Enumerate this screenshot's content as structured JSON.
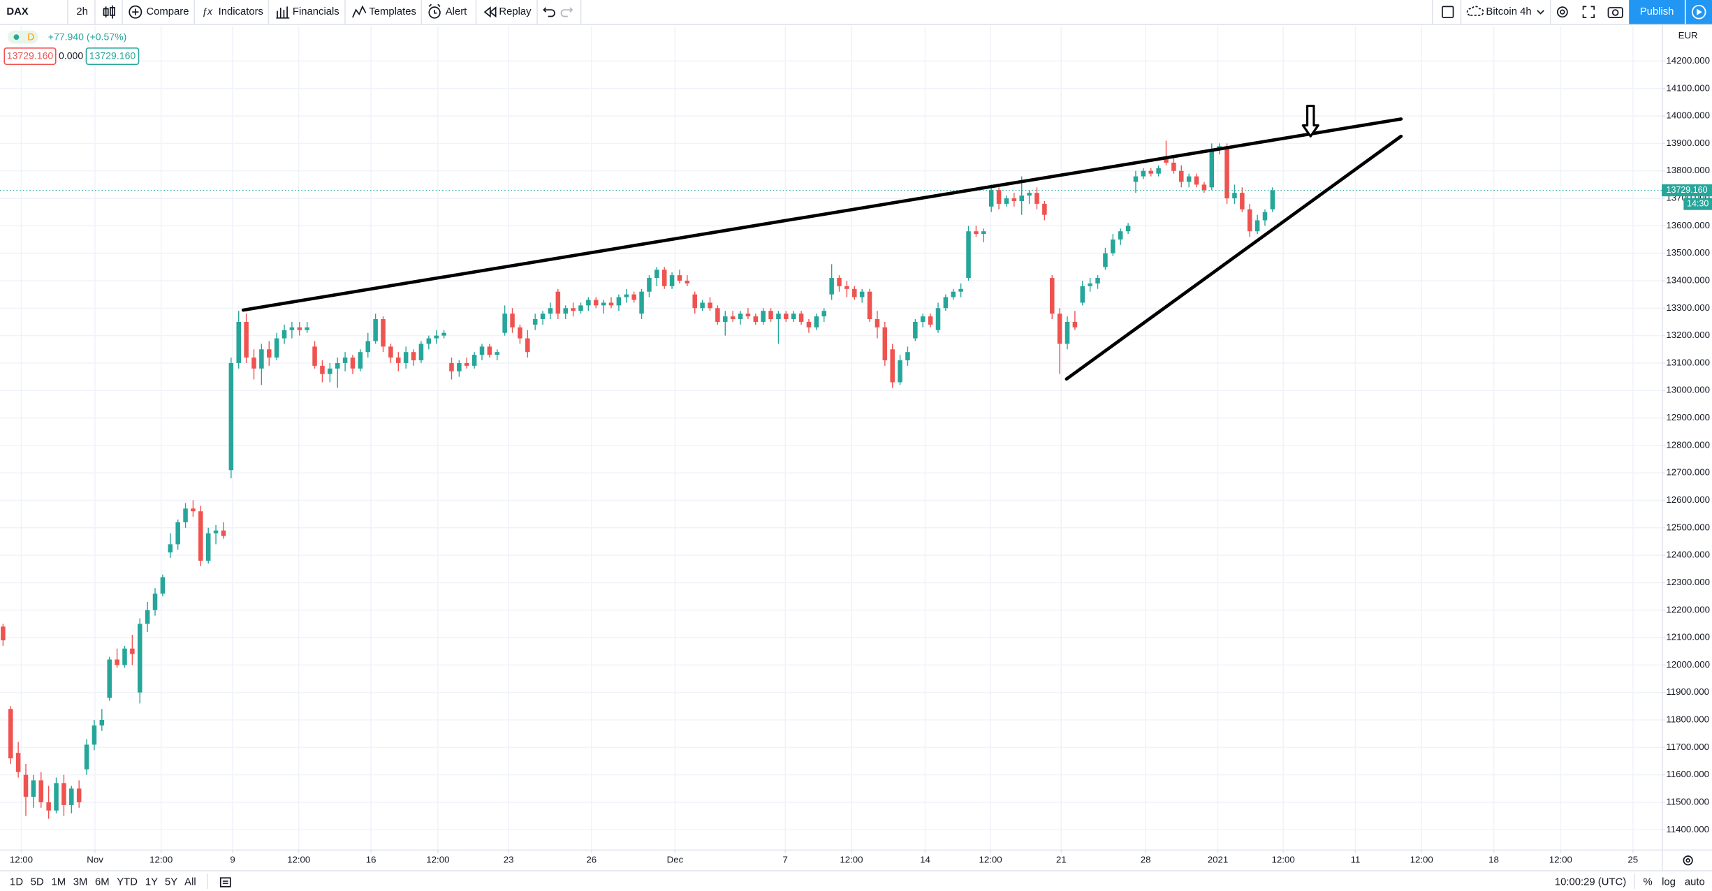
{
  "header": {
    "symbol": "DAX",
    "interval": "2h",
    "buttons": [
      "Compare",
      "Indicators",
      "Financials",
      "Templates",
      "Alert",
      "Replay"
    ],
    "layout": "Bitcoin 4h",
    "publish": "Publish"
  },
  "chart_data": {
    "type": "candlestick",
    "title": "DAX",
    "legend": {
      "source": "D",
      "change": "+77.940 (+0.57%)",
      "values": [
        "13729.160",
        "0.000",
        "13729.160"
      ]
    },
    "currency": "EUR",
    "up_color": "#26a69a",
    "down_color": "#ef5350",
    "x": [
      0,
      1,
      2,
      3,
      4,
      5,
      6,
      7,
      8,
      9,
      10,
      11,
      12,
      13,
      14,
      15,
      16,
      17,
      18,
      19,
      20,
      21,
      22,
      23,
      24,
      25,
      26,
      27,
      28,
      29,
      30,
      31,
      32,
      33,
      34,
      35,
      36,
      37,
      38,
      39,
      40,
      41,
      42,
      43,
      44,
      45,
      46,
      47,
      48,
      49,
      50,
      51,
      52,
      53,
      54,
      55,
      56,
      57,
      58,
      59,
      60,
      61,
      62,
      63,
      64,
      65,
      66,
      67,
      68,
      69,
      70,
      71,
      72,
      73,
      74,
      75,
      76,
      77,
      78,
      79,
      80,
      81,
      82,
      83,
      84,
      85,
      86,
      87,
      88,
      89,
      90,
      91,
      92,
      93,
      94,
      95,
      96,
      97,
      98,
      99,
      100,
      101,
      102,
      103,
      104,
      105,
      106,
      107,
      108,
      109,
      110,
      111,
      112,
      113,
      114,
      115,
      116,
      117,
      118,
      119,
      120,
      121,
      122,
      123,
      124,
      125,
      126,
      127,
      128,
      129,
      130,
      131,
      132,
      133,
      134,
      135,
      136,
      137,
      138,
      139,
      140,
      141,
      142,
      143,
      144,
      145,
      146,
      147,
      148,
      149,
      150,
      151,
      152,
      153,
      154,
      155,
      156,
      157,
      158,
      159,
      160,
      161,
      162,
      163,
      164,
      165,
      166,
      167
    ],
    "open": [
      12140,
      11840,
      11680,
      11600,
      11520,
      11580,
      11500,
      11470,
      11570,
      11490,
      11550,
      11620,
      11710,
      11780,
      11880,
      12020,
      12000,
      12060,
      11900,
      12150,
      12200,
      12260,
      12410,
      12440,
      12520,
      12570,
      12560,
      12380,
      12480,
      12490,
      12710,
      13100,
      13250,
      13120,
      13080,
      13150,
      13120,
      13190,
      13220,
      13230,
      13220,
      13160,
      13090,
      13060,
      13080,
      13100,
      13120,
      13080,
      13140,
      13180,
      13260,
      13160,
      13120,
      13100,
      13140,
      13110,
      13170,
      13190,
      13200,
      13100,
      13070,
      13100,
      13090,
      13130,
      13160,
      13130,
      13210,
      13280,
      13230,
      13190,
      13240,
      13260,
      13280,
      13360,
      13280,
      13300,
      13290,
      13310,
      13330,
      13310,
      13320,
      13310,
      13340,
      13350,
      13280,
      13360,
      13410,
      13440,
      13380,
      13420,
      13400,
      13350,
      13300,
      13320,
      13300,
      13250,
      13270,
      13260,
      13280,
      13270,
      13250,
      13290,
      13260,
      13280,
      13260,
      13280,
      13250,
      13230,
      13270,
      13350,
      13410,
      13380,
      13370,
      13340,
      13360,
      13260,
      13230,
      13150,
      13030,
      13110,
      13190,
      13250,
      13270,
      13220,
      13300,
      13340,
      13360,
      13410,
      13580,
      13570,
      13670,
      13730,
      13680,
      13700,
      13690,
      13710,
      13720,
      13680,
      13410,
      13280,
      13170,
      13250,
      13320,
      13380,
      13390,
      13450,
      13500,
      13550,
      13580,
      13760,
      13780,
      13800,
      13790,
      13850,
      13830,
      13800,
      13760,
      13780,
      13750,
      13740,
      13880,
      13890,
      13700,
      13720,
      13660,
      13580,
      13620,
      13660
    ],
    "high": [
      12150,
      11850,
      11720,
      11640,
      11600,
      11610,
      11560,
      11590,
      11600,
      11560,
      11580,
      11730,
      11800,
      11840,
      12030,
      12060,
      12070,
      12110,
      12170,
      12230,
      12280,
      12330,
      12480,
      12530,
      12590,
      12600,
      12580,
      12500,
      12510,
      12520,
      13120,
      13290,
      13280,
      13150,
      13170,
      13180,
      13210,
      13240,
      13250,
      13250,
      13250,
      13180,
      13110,
      13100,
      13120,
      13140,
      13130,
      13150,
      13210,
      13280,
      13270,
      13170,
      13140,
      13160,
      13150,
      13180,
      13200,
      13220,
      13220,
      13120,
      13110,
      13120,
      13140,
      13170,
      13170,
      13150,
      13310,
      13300,
      13240,
      13220,
      13280,
      13290,
      13320,
      13370,
      13310,
      13320,
      13320,
      13340,
      13340,
      13330,
      13340,
      13350,
      13370,
      13360,
      13370,
      13420,
      13450,
      13450,
      13430,
      13440,
      13420,
      13360,
      13330,
      13340,
      13310,
      13290,
      13290,
      13290,
      13300,
      13280,
      13300,
      13300,
      13290,
      13290,
      13290,
      13290,
      13260,
      13280,
      13300,
      13460,
      13420,
      13400,
      13380,
      13370,
      13370,
      13290,
      13250,
      13170,
      13130,
      13160,
      13260,
      13280,
      13280,
      13320,
      13350,
      13370,
      13390,
      13600,
      13600,
      13590,
      13750,
      13740,
      13710,
      13720,
      13780,
      13730,
      13740,
      13690,
      13420,
      13300,
      13270,
      13290,
      13400,
      13410,
      13420,
      13520,
      13570,
      13590,
      13610,
      13800,
      13810,
      13810,
      13820,
      13910,
      13850,
      13820,
      13790,
      13790,
      13760,
      13900,
      13900,
      13900,
      13750,
      13740,
      13680,
      13640,
      13660,
      13740
    ],
    "low": [
      12070,
      11640,
      11590,
      11450,
      11480,
      11480,
      11440,
      11460,
      11450,
      11460,
      11480,
      11600,
      11690,
      11760,
      11870,
      11990,
      11990,
      12000,
      11860,
      12120,
      12180,
      12250,
      12390,
      12420,
      12500,
      12540,
      12360,
      12370,
      12440,
      12460,
      12680,
      13080,
      13100,
      13040,
      13020,
      13090,
      13110,
      13170,
      13190,
      13200,
      13210,
      13080,
      13030,
      13030,
      13010,
      13070,
      13060,
      13070,
      13120,
      13170,
      13140,
      13100,
      13070,
      13080,
      13090,
      13100,
      13150,
      13170,
      13190,
      13040,
      13050,
      13080,
      13080,
      13110,
      13120,
      13110,
      13200,
      13210,
      13170,
      13120,
      13220,
      13240,
      13260,
      13260,
      13260,
      13270,
      13280,
      13290,
      13300,
      13280,
      13300,
      13290,
      13320,
      13320,
      13260,
      13340,
      13380,
      13370,
      13370,
      13390,
      13380,
      13280,
      13290,
      13290,
      13240,
      13200,
      13250,
      13240,
      13260,
      13240,
      13240,
      13250,
      13170,
      13250,
      13250,
      13240,
      13210,
      13220,
      13250,
      13330,
      13360,
      13340,
      13330,
      13320,
      13250,
      13190,
      13090,
      13010,
      13020,
      13090,
      13180,
      13230,
      13230,
      13210,
      13290,
      13330,
      13340,
      13400,
      13560,
      13540,
      13650,
      13660,
      13670,
      13670,
      13640,
      13680,
      13660,
      13620,
      13260,
      13060,
      13150,
      13220,
      13310,
      13360,
      13370,
      13440,
      13490,
      13530,
      13570,
      13720,
      13770,
      13780,
      13780,
      13820,
      13790,
      13740,
      13740,
      13740,
      13720,
      13730,
      13860,
      13680,
      13680,
      13650,
      13560,
      13570,
      13600,
      13650
    ],
    "close": [
      12090,
      11660,
      11610,
      11520,
      11580,
      11500,
      11470,
      11570,
      11490,
      11550,
      11500,
      11710,
      11780,
      11800,
      12020,
      12000,
      12060,
      12040,
      12150,
      12200,
      12260,
      12320,
      12440,
      12520,
      12570,
      12560,
      12380,
      12480,
      12490,
      12470,
      13100,
      13250,
      13120,
      13080,
      13150,
      13120,
      13190,
      13220,
      13230,
      13220,
      13230,
      13090,
      13060,
      13080,
      13100,
      13120,
      13080,
      13140,
      13180,
      13260,
      13160,
      13120,
      13100,
      13140,
      13110,
      13170,
      13190,
      13200,
      13210,
      13070,
      13100,
      13090,
      13130,
      13160,
      13130,
      13140,
      13280,
      13230,
      13190,
      13140,
      13260,
      13280,
      13300,
      13280,
      13300,
      13290,
      13310,
      13330,
      13310,
      13320,
      13310,
      13340,
      13350,
      13330,
      13360,
      13410,
      13440,
      13380,
      13420,
      13400,
      13390,
      13300,
      13320,
      13300,
      13250,
      13270,
      13260,
      13280,
      13270,
      13250,
      13290,
      13260,
      13280,
      13260,
      13280,
      13250,
      13230,
      13270,
      13290,
      13410,
      13380,
      13370,
      13340,
      13360,
      13260,
      13230,
      13110,
      13030,
      13110,
      13140,
      13250,
      13270,
      13240,
      13300,
      13340,
      13360,
      13370,
      13580,
      13570,
      13580,
      13730,
      13680,
      13700,
      13690,
      13710,
      13720,
      13680,
      13640,
      13280,
      13170,
      13250,
      13230,
      13380,
      13390,
      13410,
      13500,
      13550,
      13580,
      13600,
      13780,
      13800,
      13790,
      13810,
      13830,
      13800,
      13760,
      13780,
      13750,
      13730,
      13880,
      13890,
      13700,
      13720,
      13660,
      13580,
      13620,
      13650,
      13729.16
    ],
    "xlim": [
      -0.4,
      218.2
    ],
    "xticks": [
      {
        "value": 2.4,
        "label": "12:00"
      },
      {
        "value": 12.1,
        "label": "Nov"
      },
      {
        "value": 20.8,
        "label": "12:00"
      },
      {
        "value": 30.2,
        "label": "9"
      },
      {
        "value": 38.9,
        "label": "12:00"
      },
      {
        "value": 48.4,
        "label": "16"
      },
      {
        "value": 57.2,
        "label": "12:00"
      },
      {
        "value": 66.5,
        "label": "23"
      },
      {
        "value": 77.4,
        "label": "26"
      },
      {
        "value": 88.4,
        "label": "Dec"
      },
      {
        "value": 102.9,
        "label": "7"
      },
      {
        "value": 111.6,
        "label": "12:00"
      },
      {
        "value": 121.3,
        "label": "14"
      },
      {
        "value": 129.9,
        "label": "12:00"
      },
      {
        "value": 139.2,
        "label": "21"
      },
      {
        "value": 150.3,
        "label": "28"
      },
      {
        "value": 159.8,
        "label": "2021"
      },
      {
        "value": 168.4,
        "label": "12:00"
      },
      {
        "value": 177.9,
        "label": "11"
      },
      {
        "value": 186.6,
        "label": "12:00"
      },
      {
        "value": 196.1,
        "label": "18"
      },
      {
        "value": 204.9,
        "label": "12:00"
      },
      {
        "value": 214.4,
        "label": "25"
      }
    ],
    "ylim": [
      11328,
      14327
    ],
    "yticks": [
      {
        "value": 11400,
        "label": "11400.000"
      },
      {
        "value": 11500,
        "label": "11500.000"
      },
      {
        "value": 11600,
        "label": "11600.000"
      },
      {
        "value": 11700,
        "label": "11700.000"
      },
      {
        "value": 11800,
        "label": "11800.000"
      },
      {
        "value": 11900,
        "label": "11900.000"
      },
      {
        "value": 12000,
        "label": "12000.000"
      },
      {
        "value": 12100,
        "label": "12100.000"
      },
      {
        "value": 12200,
        "label": "12200.000"
      },
      {
        "value": 12300,
        "label": "12300.000"
      },
      {
        "value": 12400,
        "label": "12400.000"
      },
      {
        "value": 12500,
        "label": "12500.000"
      },
      {
        "value": 12600,
        "label": "12600.000"
      },
      {
        "value": 12700,
        "label": "12700.000"
      },
      {
        "value": 12800,
        "label": "12800.000"
      },
      {
        "value": 12900,
        "label": "12900.000"
      },
      {
        "value": 13000,
        "label": "13000.000"
      },
      {
        "value": 13100,
        "label": "13100.000"
      },
      {
        "value": 13200,
        "label": "13200.000"
      },
      {
        "value": 13300,
        "label": "13300.000"
      },
      {
        "value": 13400,
        "label": "13400.000"
      },
      {
        "value": 13500,
        "label": "13500.000"
      },
      {
        "value": 13600,
        "label": "13600.000"
      },
      {
        "value": 13700,
        "label": "13700.000"
      },
      {
        "value": 13800,
        "label": "13800.000"
      },
      {
        "value": 13900,
        "label": "13900.000"
      },
      {
        "value": 14000,
        "label": "14000.000"
      },
      {
        "value": 14100,
        "label": "14100.000"
      },
      {
        "value": 14200,
        "label": "14200.000"
      }
    ],
    "grid": true,
    "last_price": {
      "value": 13729.16,
      "label": "13729.160",
      "countdown": "14:30"
    },
    "drawings": [
      {
        "type": "trendline",
        "color": "#000000",
        "x": [
          31.6,
          183.9
        ],
        "y": [
          13293,
          13989
        ]
      },
      {
        "type": "trendline",
        "color": "#000000",
        "x": [
          139.9,
          183.9
        ],
        "y": [
          13042,
          13926
        ]
      },
      {
        "type": "arrow",
        "color": "#000000",
        "x": 172.0,
        "y": [
          14037,
          13926
        ]
      }
    ]
  },
  "footer": {
    "ranges": [
      "1D",
      "5D",
      "1M",
      "3M",
      "6M",
      "YTD",
      "1Y",
      "5Y",
      "All"
    ],
    "clock": "10:00:29 (UTC)",
    "options": [
      "%",
      "log",
      "auto"
    ]
  }
}
